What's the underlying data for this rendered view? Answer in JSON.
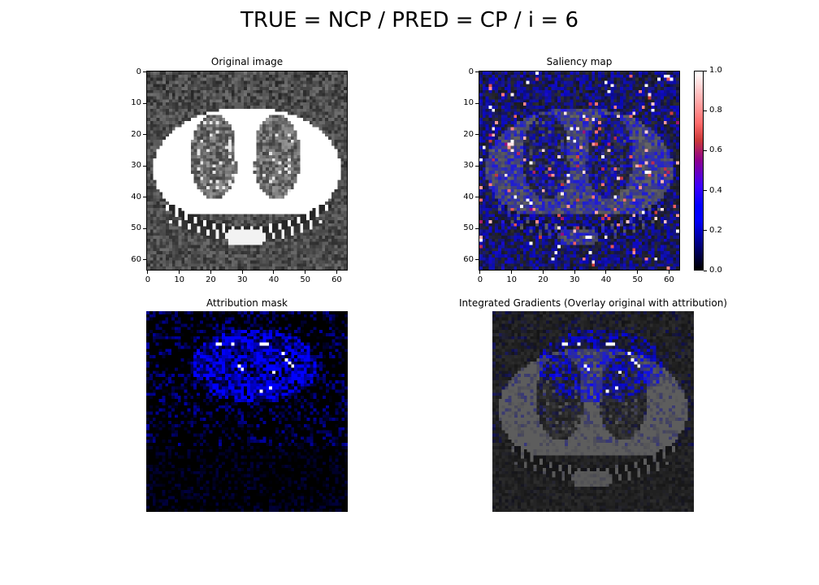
{
  "figure": {
    "suptitle": "TRUE = NCP / PRED = CP / i = 6"
  },
  "chart_data": [
    {
      "type": "heatmap",
      "title": "Original image",
      "colormap": "gray",
      "image_size": [
        64,
        64
      ],
      "xticks": [
        0,
        10,
        20,
        30,
        40,
        50,
        60
      ],
      "yticks": [
        0,
        10,
        20,
        30,
        40,
        50,
        60
      ],
      "xlim": [
        0,
        63
      ],
      "ylim": [
        63,
        0
      ]
    },
    {
      "type": "heatmap",
      "title": "Saliency map",
      "colormap": "gnuplot2 overlay on grayscale",
      "image_size": [
        64,
        64
      ],
      "xticks": [
        0,
        10,
        20,
        30,
        40,
        50,
        60
      ],
      "yticks": [
        0,
        10,
        20,
        30,
        40,
        50,
        60
      ],
      "xlim": [
        0,
        63
      ],
      "ylim": [
        63,
        0
      ],
      "colorbar": {
        "range": [
          0.0,
          1.0
        ],
        "ticks": [
          "0.0",
          "0.2",
          "0.4",
          "0.6",
          "0.8",
          "1.0"
        ]
      }
    },
    {
      "type": "heatmap",
      "title": "Attribution mask",
      "colormap": "gnuplot2",
      "image_size": [
        64,
        64
      ]
    },
    {
      "type": "heatmap",
      "title": "Integrated Gradients (Overlay original with attribution)",
      "colormap": "gnuplot2 overlay on grayscale",
      "image_size": [
        64,
        64
      ]
    }
  ]
}
